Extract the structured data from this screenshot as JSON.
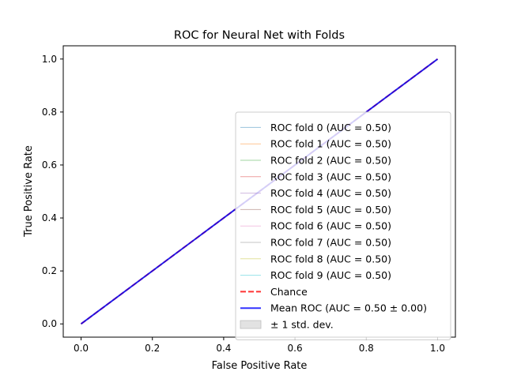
{
  "chart_data": {
    "type": "line",
    "title": "ROC for Neural Net with Folds",
    "xlabel": "False Positive Rate",
    "ylabel": "True Positive Rate",
    "xlim": [
      -0.05,
      1.05
    ],
    "ylim": [
      -0.05,
      1.05
    ],
    "x_ticks": [
      "0.0",
      "0.2",
      "0.4",
      "0.6",
      "0.8",
      "1.0"
    ],
    "y_ticks": [
      "0.0",
      "0.2",
      "0.4",
      "0.6",
      "0.8",
      "1.0"
    ],
    "grid": false,
    "legend_position": "lower-right",
    "series": [
      {
        "name": "ROC fold 0 (AUC = 0.50)",
        "x": [
          0,
          1
        ],
        "y": [
          0,
          1
        ],
        "color": "#1f77b4",
        "style": "solid",
        "opacity": 0.45
      },
      {
        "name": "ROC fold 1 (AUC = 0.50)",
        "x": [
          0,
          1
        ],
        "y": [
          0,
          1
        ],
        "color": "#ff7f0e",
        "style": "solid",
        "opacity": 0.45
      },
      {
        "name": "ROC fold 2 (AUC = 0.50)",
        "x": [
          0,
          1
        ],
        "y": [
          0,
          1
        ],
        "color": "#2ca02c",
        "style": "solid",
        "opacity": 0.45
      },
      {
        "name": "ROC fold 3 (AUC = 0.50)",
        "x": [
          0,
          1
        ],
        "y": [
          0,
          1
        ],
        "color": "#d62728",
        "style": "solid",
        "opacity": 0.45
      },
      {
        "name": "ROC fold 4 (AUC = 0.50)",
        "x": [
          0,
          1
        ],
        "y": [
          0,
          1
        ],
        "color": "#9467bd",
        "style": "solid",
        "opacity": 0.45
      },
      {
        "name": "ROC fold 5 (AUC = 0.50)",
        "x": [
          0,
          1
        ],
        "y": [
          0,
          1
        ],
        "color": "#8c564b",
        "style": "solid",
        "opacity": 0.45
      },
      {
        "name": "ROC fold 6 (AUC = 0.50)",
        "x": [
          0,
          1
        ],
        "y": [
          0,
          1
        ],
        "color": "#e377c2",
        "style": "solid",
        "opacity": 0.45
      },
      {
        "name": "ROC fold 7 (AUC = 0.50)",
        "x": [
          0,
          1
        ],
        "y": [
          0,
          1
        ],
        "color": "#7f7f7f",
        "style": "solid",
        "opacity": 0.45
      },
      {
        "name": "ROC fold 8 (AUC = 0.50)",
        "x": [
          0,
          1
        ],
        "y": [
          0,
          1
        ],
        "color": "#bcbd22",
        "style": "solid",
        "opacity": 0.45
      },
      {
        "name": "ROC fold 9 (AUC = 0.50)",
        "x": [
          0,
          1
        ],
        "y": [
          0,
          1
        ],
        "color": "#17becf",
        "style": "solid",
        "opacity": 0.45
      },
      {
        "name": "Chance",
        "x": [
          0,
          1
        ],
        "y": [
          0,
          1
        ],
        "color": "#ff0000",
        "style": "dashed",
        "opacity": 0.8
      },
      {
        "name": "Mean ROC (AUC = 0.50 ± 0.00)",
        "x": [
          0,
          1
        ],
        "y": [
          0,
          1
        ],
        "color": "#0000ff",
        "style": "solid",
        "opacity": 0.8
      },
      {
        "name": "± 1 std. dev.",
        "x": [
          0,
          1
        ],
        "y": [
          0,
          1
        ],
        "color": "#bfbfbf",
        "style": "band",
        "opacity": 0.45
      }
    ]
  }
}
